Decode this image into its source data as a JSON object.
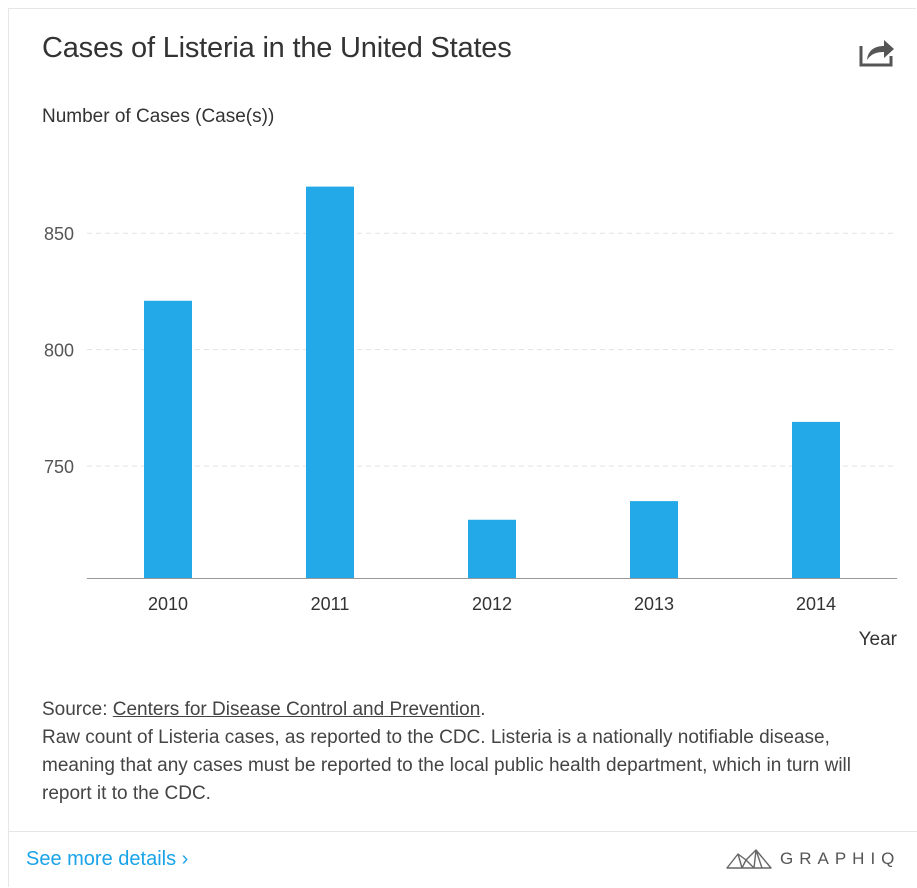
{
  "header": {
    "title": "Cases of Listeria in the United States",
    "share_icon": "share-icon"
  },
  "chart_data": {
    "type": "bar",
    "categories": [
      "2010",
      "2011",
      "2012",
      "2013",
      "2014"
    ],
    "values": [
      821,
      870,
      727,
      735,
      769
    ],
    "ylabel": "Number of Cases (Case(s))",
    "xlabel": "Year",
    "yticks": [
      750,
      800,
      850
    ],
    "ylim": [
      702,
      890
    ],
    "grid": true,
    "bar_color": "#23a8e8"
  },
  "source": {
    "prefix": "Source: ",
    "link_text": "Centers for Disease Control and Prevention",
    "suffix": ".",
    "description": "Raw count of Listeria cases, as reported to the CDC. Listeria is a nationally notifiable disease, meaning that any cases must be reported to the local public health department, which in turn will report it to the CDC."
  },
  "footer": {
    "more_link": "See more details ›",
    "brand": "GRAPHIQ",
    "brand_icon": "graphiq-logo-icon",
    "link_color": "#1aa3e8"
  }
}
